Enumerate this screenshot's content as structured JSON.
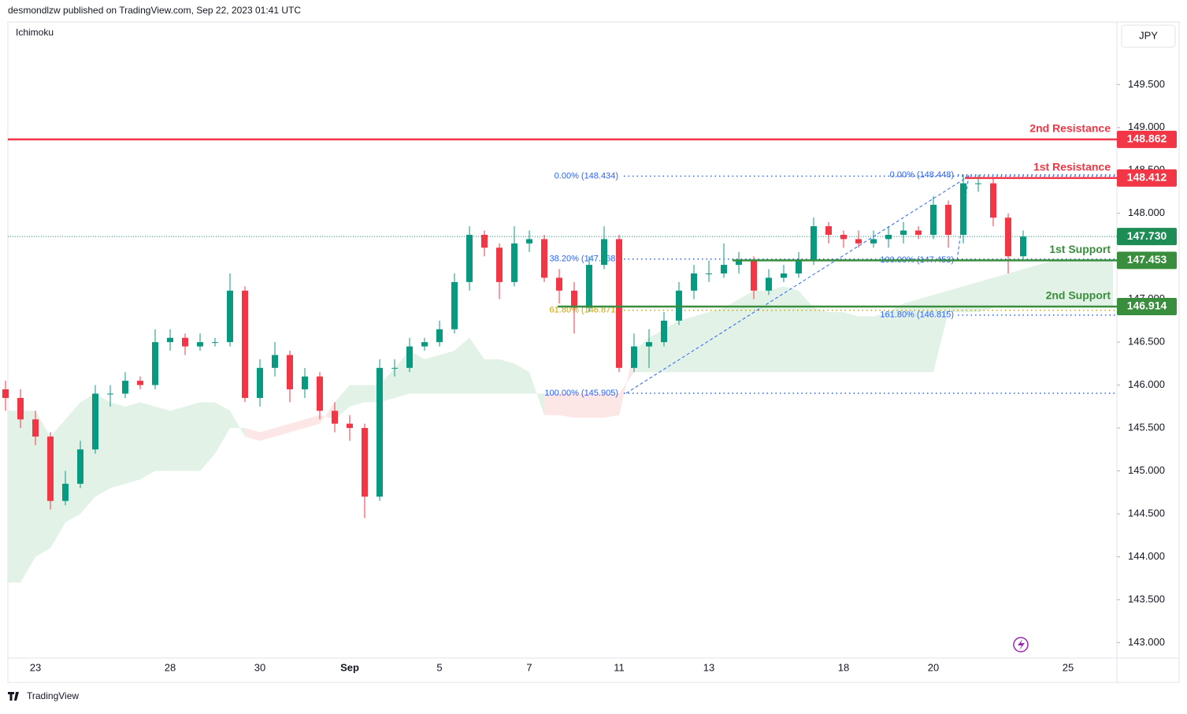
{
  "header": {
    "publisher": "desmondlzw published on TradingView.com, Sep 22, 2023 01:41 UTC",
    "indicator": "Ichimoku",
    "currency": "JPY",
    "footer": "TradingView"
  },
  "chart_data": {
    "type": "candlestick",
    "categories": [
      null,
      null,
      "23",
      null,
      null,
      null,
      null,
      null,
      null,
      null,
      null,
      "28",
      null,
      null,
      null,
      null,
      null,
      "30",
      null,
      null,
      null,
      null,
      null,
      "Sep",
      null,
      null,
      null,
      null,
      null,
      "5",
      null,
      null,
      null,
      null,
      null,
      "7",
      null,
      null,
      null,
      null,
      null,
      "11",
      null,
      null,
      null,
      null,
      null,
      "13",
      null,
      null,
      null,
      null,
      null,
      null,
      null,
      null,
      "18",
      null,
      null,
      null,
      null,
      null,
      "20",
      null,
      null,
      null,
      null,
      null,
      null,
      null,
      null,
      "25",
      null,
      null,
      null
    ],
    "open": [
      145.95,
      145.85,
      145.6,
      145.4,
      144.65,
      144.85,
      145.25,
      145.9,
      145.9,
      146.05,
      146.0,
      146.5,
      146.55,
      146.45,
      146.5,
      146.5,
      147.1,
      145.85,
      146.2,
      146.35,
      145.95,
      146.1,
      145.7,
      145.55,
      145.5,
      144.7,
      146.2,
      146.2,
      146.45,
      146.5,
      146.65,
      147.2,
      147.75,
      147.6,
      147.2,
      147.65,
      147.7,
      147.25,
      147.1,
      146.9,
      147.4,
      147.7,
      146.2,
      146.45,
      146.5,
      146.75,
      147.1,
      147.3,
      147.3,
      147.4,
      147.45,
      147.1,
      147.25,
      147.3,
      147.45,
      147.85,
      147.75,
      147.7,
      147.65,
      147.7,
      147.75,
      147.8,
      147.75,
      148.1,
      147.75,
      148.35,
      148.35,
      147.95,
      147.5,
      null,
      null,
      null,
      null,
      null,
      null
    ],
    "high": [
      146.05,
      145.95,
      145.7,
      145.45,
      145.0,
      145.35,
      146.0,
      146.0,
      146.15,
      146.1,
      146.65,
      146.65,
      146.6,
      146.6,
      146.55,
      147.3,
      147.15,
      146.3,
      146.5,
      146.4,
      146.2,
      146.15,
      145.8,
      145.65,
      145.55,
      146.3,
      146.3,
      146.55,
      146.55,
      146.75,
      147.3,
      147.85,
      147.8,
      147.65,
      147.85,
      147.8,
      147.75,
      147.35,
      147.2,
      147.5,
      147.85,
      147.75,
      146.6,
      146.65,
      146.85,
      147.2,
      147.4,
      147.45,
      147.65,
      147.55,
      147.5,
      147.35,
      147.4,
      147.55,
      147.95,
      147.9,
      147.8,
      147.8,
      147.8,
      147.85,
      147.9,
      147.85,
      148.2,
      148.15,
      148.45,
      148.45,
      148.4,
      148.0,
      147.8,
      null,
      null,
      null,
      null,
      null,
      null
    ],
    "low": [
      145.7,
      145.5,
      145.3,
      144.55,
      144.6,
      144.8,
      145.2,
      145.75,
      145.85,
      145.95,
      145.95,
      146.4,
      146.35,
      146.4,
      146.45,
      146.45,
      145.8,
      145.75,
      146.1,
      145.8,
      145.85,
      145.6,
      145.45,
      145.35,
      144.45,
      144.65,
      146.1,
      146.15,
      146.4,
      146.45,
      146.6,
      147.1,
      147.5,
      147.0,
      147.15,
      147.55,
      147.2,
      146.95,
      146.6,
      146.85,
      147.35,
      146.15,
      146.15,
      146.2,
      146.45,
      146.7,
      147.0,
      147.2,
      147.25,
      147.3,
      147.0,
      147.05,
      147.2,
      147.25,
      147.4,
      147.65,
      147.6,
      147.6,
      147.6,
      147.6,
      147.65,
      147.7,
      147.7,
      147.6,
      147.65,
      148.25,
      147.85,
      147.3,
      147.45,
      null,
      null,
      null,
      null,
      null,
      null
    ],
    "close": [
      145.85,
      145.6,
      145.4,
      144.65,
      144.85,
      145.25,
      145.9,
      145.9,
      146.05,
      146.0,
      146.5,
      146.55,
      146.45,
      146.5,
      146.5,
      147.1,
      145.85,
      146.2,
      146.35,
      145.95,
      146.1,
      145.7,
      145.55,
      145.5,
      144.7,
      146.2,
      146.2,
      146.45,
      146.5,
      146.65,
      147.2,
      147.75,
      147.6,
      147.2,
      147.65,
      147.7,
      147.25,
      147.1,
      146.9,
      147.4,
      147.7,
      146.2,
      146.45,
      146.5,
      146.75,
      147.1,
      147.3,
      147.3,
      147.4,
      147.45,
      147.1,
      147.25,
      147.3,
      147.45,
      147.85,
      147.75,
      147.7,
      147.65,
      147.7,
      147.75,
      147.8,
      147.75,
      148.1,
      147.75,
      148.35,
      148.35,
      147.95,
      147.5,
      147.73,
      null,
      null,
      null,
      null,
      null,
      null
    ],
    "up_color": "#089981",
    "down_color": "#f23645",
    "cloud": {
      "span_a": [
        145.7,
        145.7,
        145.7,
        145.4,
        145.6,
        145.8,
        145.9,
        145.8,
        145.75,
        145.8,
        145.75,
        145.7,
        145.75,
        145.8,
        145.8,
        145.7,
        145.4,
        145.35,
        145.4,
        145.45,
        145.5,
        145.55,
        145.8,
        146.0,
        146.0,
        146.0,
        146.2,
        146.4,
        146.3,
        146.35,
        146.4,
        146.55,
        146.3,
        146.3,
        146.25,
        146.15,
        145.65,
        145.65,
        145.62,
        145.62,
        145.62,
        145.65,
        146.4,
        146.55,
        146.65,
        146.75,
        146.8,
        146.85,
        146.9,
        147.0,
        147.1,
        147.1,
        147.15,
        147.1,
        146.9,
        146.85,
        146.85,
        146.8,
        146.8,
        146.85,
        146.95,
        147.0,
        147.05,
        147.1,
        147.15,
        147.2,
        147.25,
        147.3,
        147.35,
        147.4,
        147.45,
        147.45,
        147.45,
        147.45,
        147.45
      ],
      "span_b": [
        143.7,
        143.7,
        144.0,
        144.1,
        144.4,
        144.5,
        144.7,
        144.8,
        144.85,
        144.9,
        145.0,
        145.0,
        145.0,
        145.0,
        145.2,
        145.5,
        145.5,
        145.45,
        145.5,
        145.55,
        145.6,
        145.65,
        145.6,
        145.75,
        145.8,
        145.8,
        145.85,
        145.9,
        145.9,
        145.9,
        145.9,
        145.9,
        145.9,
        145.9,
        145.9,
        145.9,
        145.9,
        145.9,
        145.9,
        145.9,
        145.9,
        145.9,
        146.15,
        146.15,
        146.15,
        146.15,
        146.15,
        146.15,
        146.15,
        146.15,
        146.15,
        146.15,
        146.15,
        146.15,
        146.15,
        146.15,
        146.15,
        146.15,
        146.15,
        146.15,
        146.15,
        146.15,
        146.15,
        146.85,
        146.85,
        146.85,
        146.9,
        146.9,
        146.9,
        146.9,
        146.9,
        146.9,
        146.9,
        146.9,
        146.9
      ],
      "up_color": "#e3f2e6",
      "down_color": "#fde6e6"
    },
    "ylim": [
      142.82,
      150.21
    ],
    "yticks": [
      {
        "value": 143.0,
        "label": "143.000"
      },
      {
        "value": 143.5,
        "label": "143.500"
      },
      {
        "value": 144.0,
        "label": "144.000"
      },
      {
        "value": 144.5,
        "label": "144.500"
      },
      {
        "value": 145.0,
        "label": "145.000"
      },
      {
        "value": 145.5,
        "label": "145.500"
      },
      {
        "value": 146.0,
        "label": "146.000"
      },
      {
        "value": 146.5,
        "label": "146.500"
      },
      {
        "value": 147.0,
        "label": "147.000"
      },
      {
        "value": 147.5,
        "label": "147.500"
      },
      {
        "value": 148.0,
        "label": "148.000"
      },
      {
        "value": 148.5,
        "label": "148.500"
      },
      {
        "value": 149.0,
        "label": "149.000"
      },
      {
        "value": 149.5,
        "label": "149.500"
      }
    ],
    "last_price": {
      "value": 147.73,
      "label": "147.730",
      "color": "#1e8c55"
    },
    "levels": [
      {
        "name": "2nd Resistance",
        "value": 148.862,
        "color": "#f23645"
      },
      {
        "name": "1st Resistance",
        "value": 148.412,
        "color": "#f23645"
      },
      {
        "name": "1st Support",
        "value": 147.453,
        "color": "#388e3c"
      },
      {
        "name": "2nd Support",
        "value": 146.914,
        "color": "#388e3c"
      }
    ],
    "fib_left": [
      {
        "label": "0.00% (148.434)",
        "value": 148.434,
        "color": "#2962ff"
      },
      {
        "label": "38.20% (147.468)",
        "value": 147.468,
        "color": "#2962ff"
      },
      {
        "label": "61.80% (146.871)",
        "value": 146.871,
        "color": "#c9a400"
      },
      {
        "label": "100.00% (145.905)",
        "value": 145.905,
        "color": "#2962ff"
      }
    ],
    "fib_right": [
      {
        "label": "0.00% (148.448)",
        "value": 148.448,
        "color": "#2962ff"
      },
      {
        "label": "100.00% (147.453)",
        "value": 147.453,
        "color": "#2962ff"
      },
      {
        "label": "161.80% (146.815)",
        "value": 146.815,
        "color": "#2962ff"
      }
    ]
  }
}
